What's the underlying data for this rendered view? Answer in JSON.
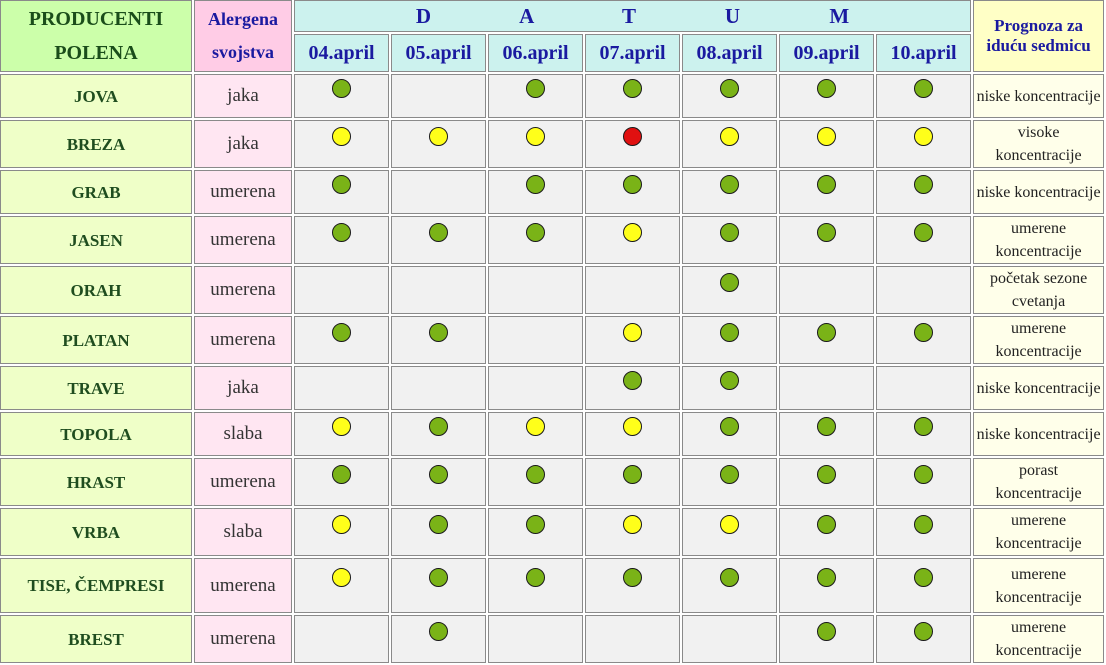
{
  "header": {
    "producers": "PRODUCENTI POLENA",
    "allergen": "Alergena svojstva",
    "datum": "D A T U M",
    "forecast": "Prognoza za iduću sedmicu",
    "dates": [
      "04.april",
      "05.april",
      "06.april",
      "07.april",
      "08.april",
      "09.april",
      "10.april"
    ]
  },
  "legend_colors": {
    "green": "#7ab317",
    "yellow": "#ffff1a",
    "red": "#e01010"
  },
  "rows": [
    {
      "name": "JOVA",
      "allergen": "jaka",
      "days": [
        "green",
        "",
        "green",
        "green",
        "green",
        "green",
        "green"
      ],
      "forecast": "niske koncentracije"
    },
    {
      "name": "BREZA",
      "allergen": "jaka",
      "days": [
        "yellow",
        "yellow",
        "yellow",
        "red",
        "yellow",
        "yellow",
        "yellow"
      ],
      "forecast": "visoke koncentracije"
    },
    {
      "name": "GRAB",
      "allergen": "umerena",
      "days": [
        "green",
        "",
        "green",
        "green",
        "green",
        "green",
        "green"
      ],
      "forecast": "niske koncentracije"
    },
    {
      "name": "JASEN",
      "allergen": "umerena",
      "days": [
        "green",
        "green",
        "green",
        "yellow",
        "green",
        "green",
        "green"
      ],
      "forecast": "umerene koncentracije"
    },
    {
      "name": "ORAH",
      "allergen": "umerena",
      "days": [
        "",
        "",
        "",
        "",
        "green",
        "",
        ""
      ],
      "forecast": "početak sezone cvetanja"
    },
    {
      "name": "PLATAN",
      "allergen": "umerena",
      "days": [
        "green",
        "green",
        "",
        "yellow",
        "green",
        "green",
        "green"
      ],
      "forecast": "umerene koncentracije"
    },
    {
      "name": "TRAVE",
      "allergen": "jaka",
      "days": [
        "",
        "",
        "",
        "green",
        "green",
        "",
        ""
      ],
      "forecast": "niske koncentracije"
    },
    {
      "name": "TOPOLA",
      "allergen": "slaba",
      "days": [
        "yellow",
        "green",
        "yellow",
        "yellow",
        "green",
        "green",
        "green"
      ],
      "forecast": "niske koncentracije"
    },
    {
      "name": "HRAST",
      "allergen": "umerena",
      "days": [
        "green",
        "green",
        "green",
        "green",
        "green",
        "green",
        "green"
      ],
      "forecast": "porast koncentracije"
    },
    {
      "name": "VRBA",
      "allergen": "slaba",
      "days": [
        "yellow",
        "green",
        "green",
        "yellow",
        "yellow",
        "green",
        "green"
      ],
      "forecast": "umerene koncentracije"
    },
    {
      "name": "TISE, ČEMPRESI",
      "allergen": "umerena",
      "days": [
        "yellow",
        "green",
        "green",
        "green",
        "green",
        "green",
        "green"
      ],
      "forecast": "umerene koncentracije"
    },
    {
      "name": "BREST",
      "allergen": "umerena",
      "days": [
        "",
        "green",
        "",
        "",
        "",
        "green",
        "green"
      ],
      "forecast": "umerene koncentracije"
    }
  ]
}
